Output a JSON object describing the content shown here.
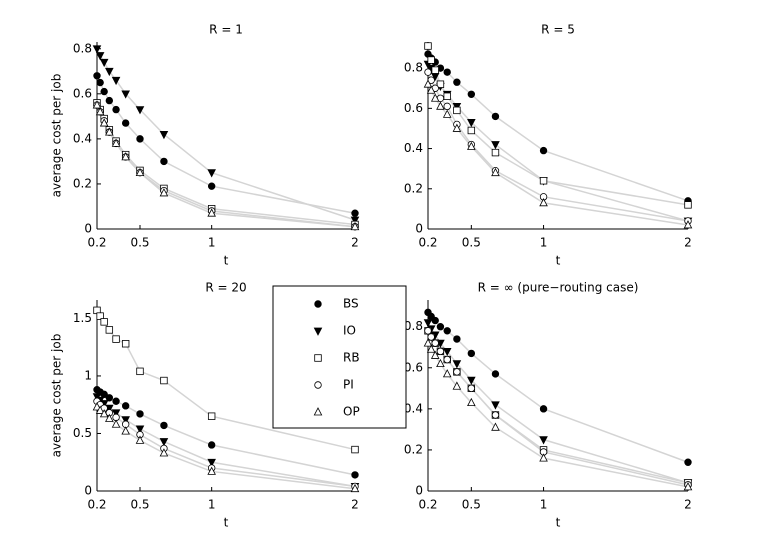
{
  "chart_data": [
    {
      "type": "line",
      "title": "R = 1",
      "xlabel": "t",
      "ylabel": "average cost per job",
      "x": [
        0.2,
        0.222,
        0.25,
        0.286,
        0.333,
        0.4,
        0.5,
        0.667,
        1,
        2
      ],
      "xlim": [
        0.2,
        2
      ],
      "xticks": [
        0.2,
        0.5,
        1,
        2
      ],
      "ylim": [
        0,
        0.83
      ],
      "yticks": [
        0,
        0.2,
        0.4,
        0.6,
        0.8
      ],
      "line_color": "#d4d4d4",
      "series": [
        {
          "name": "BS",
          "marker": "circle",
          "color": "#000000",
          "values": [
            0.68,
            0.65,
            0.61,
            0.57,
            0.53,
            0.47,
            0.4,
            0.3,
            0.19,
            0.07
          ]
        },
        {
          "name": "IO",
          "marker": "triangle-down",
          "color": "#000000",
          "values": [
            0.8,
            0.77,
            0.74,
            0.7,
            0.66,
            0.6,
            0.53,
            0.42,
            0.25,
            0.04
          ]
        },
        {
          "name": "RB",
          "marker": "square-open",
          "color": "#000000",
          "values": [
            0.56,
            0.53,
            0.49,
            0.44,
            0.39,
            0.33,
            0.26,
            0.18,
            0.09,
            0.02
          ]
        },
        {
          "name": "PI",
          "marker": "circle-open",
          "color": "#000000",
          "values": [
            0.55,
            0.52,
            0.48,
            0.43,
            0.38,
            0.32,
            0.25,
            0.17,
            0.08,
            0.01
          ]
        },
        {
          "name": "OP",
          "marker": "triangle-up-open",
          "color": "#000000",
          "values": [
            0.55,
            0.52,
            0.47,
            0.43,
            0.38,
            0.32,
            0.25,
            0.16,
            0.07,
            0.01
          ]
        }
      ]
    },
    {
      "type": "line",
      "title": "R = 5",
      "xlabel": "t",
      "x": [
        0.2,
        0.222,
        0.25,
        0.286,
        0.333,
        0.4,
        0.5,
        0.667,
        1,
        2
      ],
      "xlim": [
        0.2,
        2
      ],
      "xticks": [
        0.2,
        0.5,
        1,
        2
      ],
      "ylim": [
        0,
        0.93
      ],
      "yticks": [
        0,
        0.2,
        0.4,
        0.6,
        0.8
      ],
      "line_color": "#d4d4d4",
      "series": [
        {
          "name": "BS",
          "marker": "circle",
          "color": "#000000",
          "values": [
            0.87,
            0.85,
            0.83,
            0.8,
            0.78,
            0.73,
            0.67,
            0.56,
            0.39,
            0.14
          ]
        },
        {
          "name": "IO",
          "marker": "triangle-down",
          "color": "#000000",
          "values": [
            0.82,
            0.8,
            0.76,
            0.71,
            0.67,
            0.61,
            0.53,
            0.42,
            0.24,
            0.04
          ]
        },
        {
          "name": "RB",
          "marker": "square-open",
          "color": "#000000",
          "values": [
            0.91,
            0.84,
            0.79,
            0.72,
            0.66,
            0.59,
            0.49,
            0.38,
            0.24,
            0.12
          ]
        },
        {
          "name": "PI",
          "marker": "circle-open",
          "color": "#000000",
          "values": [
            0.78,
            0.74,
            0.7,
            0.65,
            0.61,
            0.52,
            0.42,
            0.29,
            0.16,
            0.04
          ]
        },
        {
          "name": "OP",
          "marker": "triangle-up-open",
          "color": "#000000",
          "values": [
            0.72,
            0.69,
            0.65,
            0.61,
            0.57,
            0.5,
            0.41,
            0.28,
            0.13,
            0.02
          ]
        }
      ]
    },
    {
      "type": "line",
      "title": "R = 20",
      "xlabel": "t",
      "ylabel": "average cost per job",
      "x": [
        0.2,
        0.222,
        0.25,
        0.286,
        0.333,
        0.4,
        0.5,
        0.667,
        1,
        2
      ],
      "xlim": [
        0.2,
        2
      ],
      "xticks": [
        0.2,
        0.5,
        1,
        2
      ],
      "ylim": [
        0,
        1.66
      ],
      "yticks": [
        0,
        0.5,
        1,
        1.5
      ],
      "line_color": "#d4d4d4",
      "series": [
        {
          "name": "BS",
          "marker": "circle",
          "color": "#000000",
          "values": [
            0.88,
            0.86,
            0.84,
            0.81,
            0.78,
            0.74,
            0.67,
            0.57,
            0.4,
            0.14
          ]
        },
        {
          "name": "IO",
          "marker": "triangle-down",
          "color": "#000000",
          "values": [
            0.82,
            0.79,
            0.76,
            0.72,
            0.68,
            0.62,
            0.54,
            0.43,
            0.25,
            0.04
          ]
        },
        {
          "name": "RB",
          "marker": "square-open",
          "color": "#000000",
          "values": [
            1.57,
            1.52,
            1.47,
            1.4,
            1.32,
            1.28,
            1.04,
            0.96,
            0.65,
            0.36
          ]
        },
        {
          "name": "PI",
          "marker": "circle-open",
          "color": "#000000",
          "values": [
            0.78,
            0.75,
            0.72,
            0.68,
            0.64,
            0.58,
            0.49,
            0.37,
            0.2,
            0.04
          ]
        },
        {
          "name": "OP",
          "marker": "triangle-up-open",
          "color": "#000000",
          "values": [
            0.73,
            0.7,
            0.67,
            0.63,
            0.58,
            0.52,
            0.44,
            0.33,
            0.17,
            0.02
          ]
        }
      ]
    },
    {
      "type": "line",
      "title": "R = ∞ (pure−routing case)",
      "xlabel": "t",
      "x": [
        0.2,
        0.222,
        0.25,
        0.286,
        0.333,
        0.4,
        0.5,
        0.667,
        1,
        2
      ],
      "xlim": [
        0.2,
        2
      ],
      "xticks": [
        0.2,
        0.5,
        1,
        2
      ],
      "ylim": [
        0,
        0.93
      ],
      "yticks": [
        0,
        0.2,
        0.4,
        0.6,
        0.8
      ],
      "line_color": "#d4d4d4",
      "series": [
        {
          "name": "BS",
          "marker": "circle",
          "color": "#000000",
          "values": [
            0.87,
            0.85,
            0.83,
            0.8,
            0.78,
            0.74,
            0.67,
            0.57,
            0.4,
            0.14
          ]
        },
        {
          "name": "IO",
          "marker": "triangle-down",
          "color": "#000000",
          "values": [
            0.82,
            0.79,
            0.76,
            0.72,
            0.68,
            0.62,
            0.54,
            0.42,
            0.25,
            0.04
          ]
        },
        {
          "name": "RB",
          "marker": "square-open",
          "color": "#000000",
          "values": [
            0.78,
            0.75,
            0.72,
            0.68,
            0.64,
            0.58,
            0.5,
            0.37,
            0.2,
            0.04
          ]
        },
        {
          "name": "PI",
          "marker": "circle-open",
          "color": "#000000",
          "values": [
            0.78,
            0.75,
            0.72,
            0.68,
            0.64,
            0.58,
            0.5,
            0.37,
            0.19,
            0.03
          ]
        },
        {
          "name": "OP",
          "marker": "triangle-up-open",
          "color": "#000000",
          "values": [
            0.72,
            0.69,
            0.66,
            0.62,
            0.57,
            0.51,
            0.43,
            0.31,
            0.16,
            0.02
          ]
        }
      ]
    }
  ]
}
